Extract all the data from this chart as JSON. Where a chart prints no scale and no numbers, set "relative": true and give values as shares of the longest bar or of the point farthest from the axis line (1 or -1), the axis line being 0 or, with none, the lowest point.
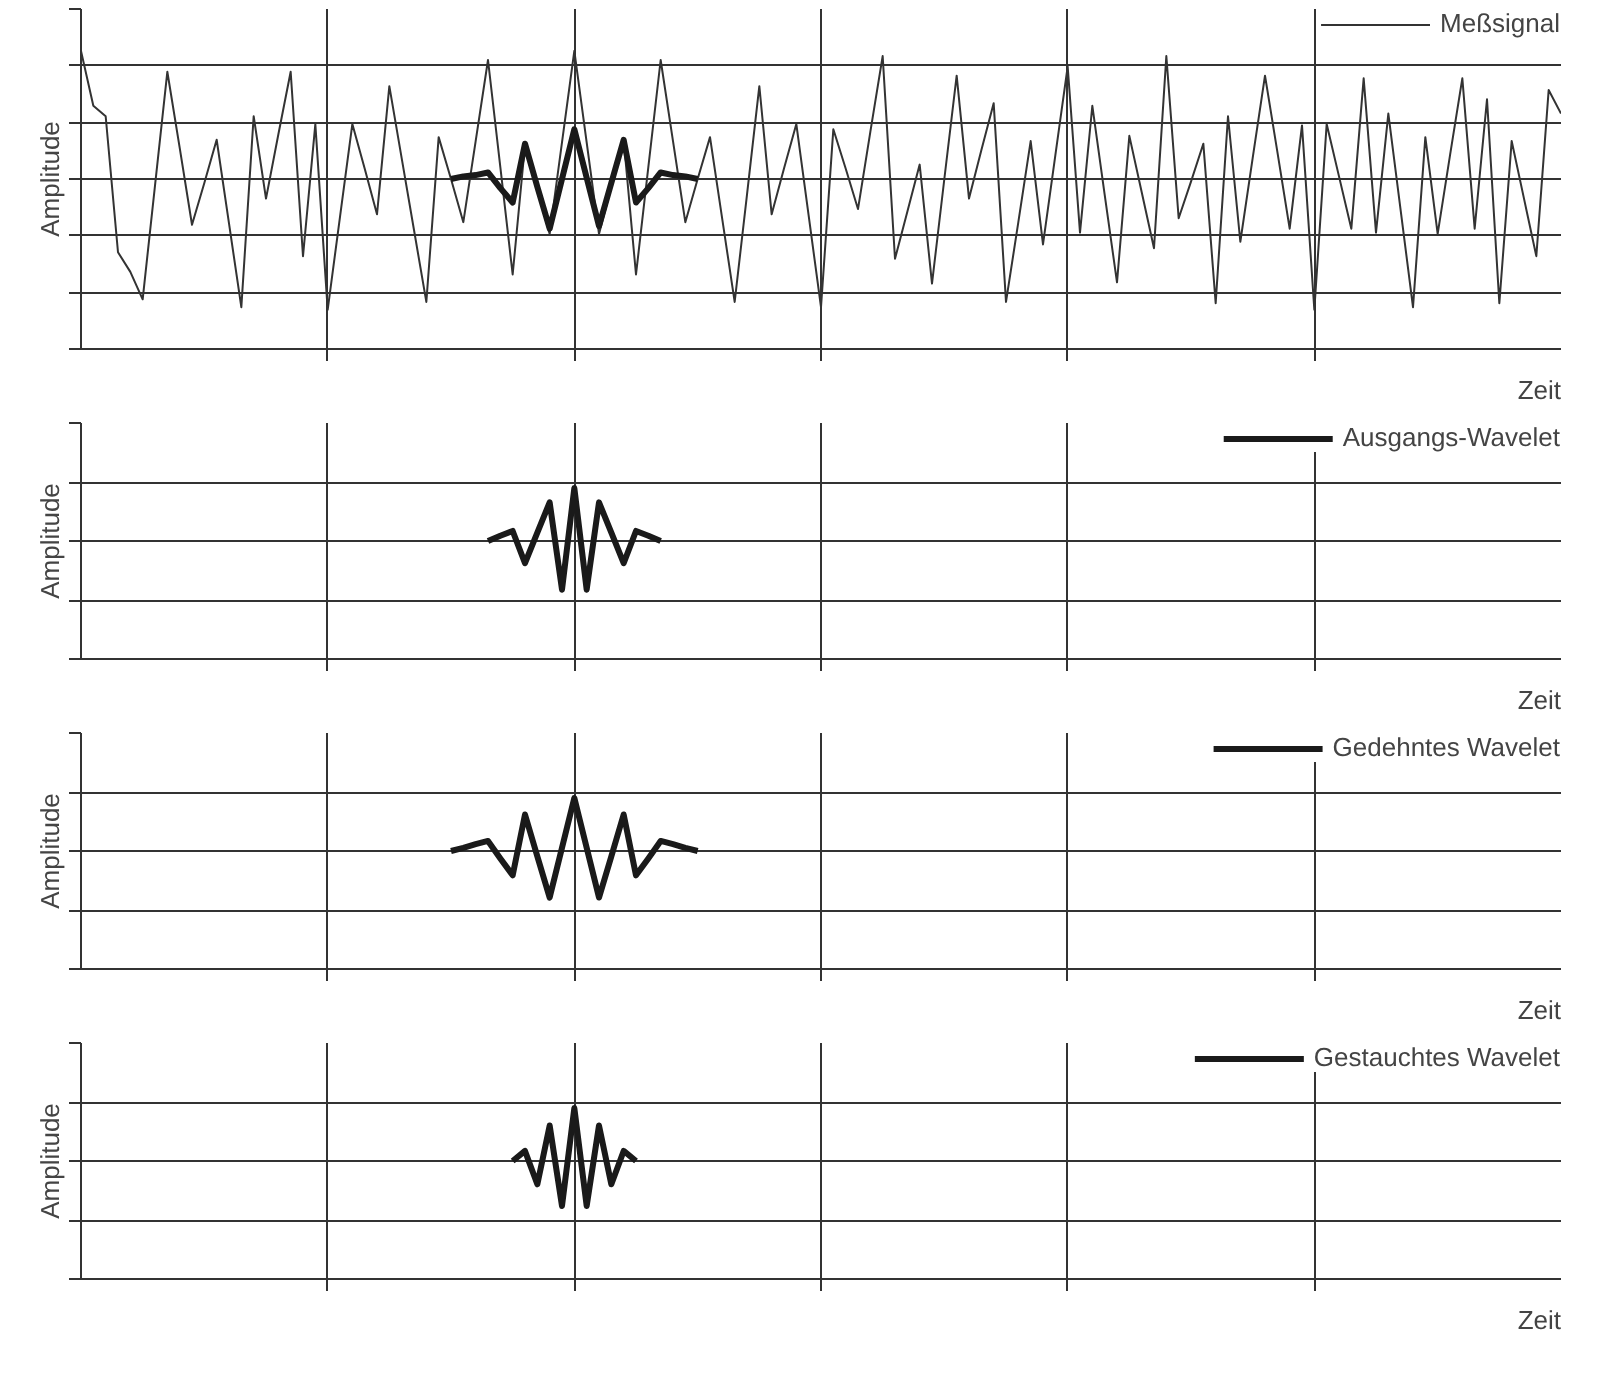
{
  "chart_data": [
    {
      "type": "line",
      "relative": true,
      "ylabel": "Amplitude",
      "xlabel": "Zeit",
      "grid": true,
      "legend": "top right",
      "categories": [
        null,
        null,
        null,
        null,
        null,
        null,
        null,
        null,
        null,
        null,
        null,
        null,
        null,
        null,
        null,
        null,
        null,
        null,
        null,
        null,
        null,
        null,
        null,
        null,
        null,
        null,
        null,
        null,
        null,
        null,
        null,
        null,
        null,
        null,
        null,
        null,
        null,
        null,
        null,
        null,
        null,
        null,
        null,
        null,
        null,
        null,
        null,
        null,
        null,
        null,
        null,
        null,
        null,
        null,
        null,
        null,
        null,
        null,
        null,
        null,
        null,
        null,
        null,
        null,
        null,
        null,
        null,
        null,
        null,
        null,
        null,
        null,
        null,
        null,
        null,
        null,
        null,
        null,
        null,
        null,
        null,
        null,
        null,
        null,
        null,
        null,
        null,
        null,
        null,
        null,
        null,
        null,
        null,
        null,
        null,
        null,
        null,
        null,
        null,
        null,
        null,
        null,
        null,
        null,
        null,
        null,
        null,
        null,
        null,
        null,
        null,
        null,
        null,
        null,
        null,
        null,
        null,
        null,
        null,
        null,
        null
      ],
      "series": [
        {
          "name": "Meßsignal",
          "color": "#333333",
          "values": [
            0.98,
            0.56,
            0.48,
            -0.56,
            -0.71,
            -0.92,
            -0.05,
            0.82,
            0.24,
            -0.35,
            -0.03,
            0.3,
            -0.34,
            -0.98,
            0.48,
            -0.15,
            0.34,
            0.82,
            -0.59,
            0.42,
            -1,
            -0.29,
            0.42,
            0.08,
            -0.27,
            0.71,
            0.16,
            -0.39,
            -0.94,
            0.32,
            0.0,
            -0.33,
            0.29,
            0.91,
            0.09,
            -0.73,
            0.26,
            -0.08,
            -0.42,
            0.28,
            0.98,
            0.28,
            -0.42,
            -0.06,
            0.3,
            -0.73,
            0.09,
            0.91,
            0.29,
            -0.33,
            0.0,
            0.32,
            -0.31,
            -0.94,
            -0.12,
            0.71,
            -0.27,
            0.08,
            0.42,
            -0.28,
            -0.98,
            0.38,
            0.08,
            -0.23,
            0.36,
            0.94,
            -0.61,
            -0.25,
            0.11,
            -0.8,
            0.0,
            0.79,
            -0.15,
            0.22,
            0.58,
            -0.94,
            -0.33,
            0.29,
            -0.5,
            0.18,
            0.86,
            -0.41,
            0.56,
            -0.12,
            -0.79,
            0.33,
            -0.1,
            -0.53,
            0.94,
            -0.3,
            -0.02,
            0.27,
            -0.95,
            0.48,
            -0.48,
            0.16,
            0.79,
            0.21,
            -0.38,
            0.41,
            -1,
            0.42,
            0.02,
            -0.38,
            0.77,
            -0.41,
            0.5,
            -0.24,
            -0.98,
            0.32,
            -0.42,
            0.18,
            0.77,
            -0.38,
            0.61,
            -0.95,
            0.29,
            -0.15,
            -0.59,
            0.68,
            0.5
          ]
        },
        {
          "color": "#1a1a1a",
          "values": [
            null,
            null,
            null,
            null,
            null,
            null,
            null,
            null,
            null,
            null,
            null,
            null,
            null,
            null,
            null,
            null,
            null,
            null,
            null,
            null,
            null,
            null,
            null,
            null,
            null,
            null,
            null,
            null,
            null,
            null,
            0,
            0.02,
            0.03,
            0.05,
            -0.07,
            -0.18,
            0.27,
            -0.06,
            -0.38,
            0.0,
            0.38,
            0.01,
            -0.36,
            -0.03,
            0.3,
            -0.18,
            -0.07,
            0.05,
            0.03,
            0.02,
            0,
            null,
            null,
            null,
            null,
            null,
            null,
            null,
            null,
            null,
            null,
            null,
            null,
            null,
            null,
            null,
            null,
            null,
            null,
            null,
            null,
            null,
            null,
            null,
            null,
            null,
            null,
            null,
            null,
            null,
            null,
            null,
            null,
            null,
            null,
            null,
            null,
            null,
            null,
            null,
            null,
            null,
            null,
            null,
            null,
            null,
            null,
            null,
            null,
            null,
            null,
            null,
            null,
            null,
            null,
            null,
            null,
            null,
            null,
            null,
            null,
            null,
            null,
            null,
            null,
            null,
            null,
            null,
            null,
            null,
            null
          ]
        }
      ]
    },
    {
      "type": "line",
      "relative": true,
      "ylabel": "Amplitude",
      "xlabel": "Zeit",
      "grid": true,
      "legend": "top right",
      "categories": [
        null,
        null,
        null,
        null,
        null,
        null,
        null,
        null,
        null,
        null,
        null,
        null,
        null,
        null,
        null,
        null,
        null,
        null,
        null,
        null,
        null,
        null,
        null,
        null,
        null,
        null,
        null,
        null,
        null,
        null,
        null,
        null,
        null,
        null,
        null,
        null,
        null,
        null,
        null,
        null,
        null,
        null,
        null,
        null,
        null,
        null,
        null,
        null,
        null,
        null,
        null,
        null,
        null,
        null,
        null,
        null,
        null,
        null,
        null,
        null,
        null,
        null,
        null,
        null,
        null,
        null,
        null,
        null,
        null,
        null,
        null,
        null,
        null,
        null,
        null,
        null,
        null,
        null,
        null,
        null,
        null,
        null,
        null,
        null,
        null,
        null,
        null,
        null,
        null,
        null,
        null,
        null,
        null,
        null,
        null,
        null,
        null,
        null,
        null,
        null,
        null,
        null,
        null,
        null,
        null,
        null,
        null,
        null,
        null,
        null,
        null,
        null,
        null,
        null,
        null,
        null,
        null,
        null,
        null,
        null,
        null
      ],
      "series": [
        {
          "name": "Ausgangs-Wavelet",
          "color": "#1a1a1a",
          "values": [
            null,
            null,
            null,
            null,
            null,
            null,
            null,
            null,
            null,
            null,
            null,
            null,
            null,
            null,
            null,
            null,
            null,
            null,
            null,
            null,
            null,
            null,
            null,
            null,
            null,
            null,
            null,
            null,
            null,
            null,
            null,
            null,
            null,
            0,
            0.1,
            0.19,
            -0.42,
            0.16,
            0.73,
            -0.92,
            1,
            -0.92,
            0.73,
            0.16,
            -0.42,
            0.19,
            0.1,
            0,
            null,
            null,
            null,
            null,
            null,
            null,
            null,
            null,
            null,
            null,
            null,
            null,
            null,
            null,
            null,
            null,
            null,
            null,
            null,
            null,
            null,
            null,
            null,
            null,
            null,
            null,
            null,
            null,
            null,
            null,
            null,
            null,
            null,
            null,
            null,
            null,
            null,
            null,
            null,
            null,
            null,
            null,
            null,
            null,
            null,
            null,
            null,
            null,
            null,
            null,
            null,
            null,
            null,
            null,
            null,
            null,
            null,
            null,
            null,
            null,
            null,
            null,
            null,
            null,
            null,
            null,
            null,
            null,
            null,
            null,
            null,
            null,
            null
          ]
        }
      ]
    },
    {
      "type": "line",
      "relative": true,
      "ylabel": "Amplitude",
      "xlabel": "Zeit",
      "grid": true,
      "legend": "top right",
      "categories": [
        null,
        null,
        null,
        null,
        null,
        null,
        null,
        null,
        null,
        null,
        null,
        null,
        null,
        null,
        null,
        null,
        null,
        null,
        null,
        null,
        null,
        null,
        null,
        null,
        null,
        null,
        null,
        null,
        null,
        null,
        null,
        null,
        null,
        null,
        null,
        null,
        null,
        null,
        null,
        null,
        null,
        null,
        null,
        null,
        null,
        null,
        null,
        null,
        null,
        null,
        null,
        null,
        null,
        null,
        null,
        null,
        null,
        null,
        null,
        null,
        null,
        null,
        null,
        null,
        null,
        null,
        null,
        null,
        null,
        null,
        null,
        null,
        null,
        null,
        null,
        null,
        null,
        null,
        null,
        null,
        null,
        null,
        null,
        null,
        null,
        null,
        null,
        null,
        null,
        null,
        null,
        null,
        null,
        null,
        null,
        null,
        null,
        null,
        null,
        null,
        null,
        null,
        null,
        null,
        null,
        null,
        null,
        null,
        null,
        null,
        null,
        null,
        null,
        null,
        null,
        null,
        null,
        null,
        null,
        null,
        null
      ],
      "series": [
        {
          "name": "Gedehntes Wavelet",
          "color": "#1a1a1a",
          "values": [
            null,
            null,
            null,
            null,
            null,
            null,
            null,
            null,
            null,
            null,
            null,
            null,
            null,
            null,
            null,
            null,
            null,
            null,
            null,
            null,
            null,
            null,
            null,
            null,
            null,
            null,
            null,
            null,
            null,
            null,
            0,
            0.06,
            0.13,
            0.19,
            -0.14,
            -0.46,
            0.69,
            -0.1,
            -0.88,
            0.06,
            1,
            0.06,
            -0.88,
            -0.1,
            0.69,
            -0.46,
            -0.14,
            0.19,
            0.13,
            0.06,
            0,
            null,
            null,
            null,
            null,
            null,
            null,
            null,
            null,
            null,
            null,
            null,
            null,
            null,
            null,
            null,
            null,
            null,
            null,
            null,
            null,
            null,
            null,
            null,
            null,
            null,
            null,
            null,
            null,
            null,
            null,
            null,
            null,
            null,
            null,
            null,
            null,
            null,
            null,
            null,
            null,
            null,
            null,
            null,
            null,
            null,
            null,
            null,
            null,
            null,
            null,
            null,
            null,
            null,
            null,
            null,
            null,
            null,
            null,
            null,
            null,
            null,
            null,
            null,
            null,
            null,
            null,
            null,
            null,
            null,
            null
          ]
        }
      ]
    },
    {
      "type": "line",
      "relative": true,
      "ylabel": "Amplitude",
      "xlabel": "Zeit",
      "grid": true,
      "legend": "top right",
      "categories": [
        null,
        null,
        null,
        null,
        null,
        null,
        null,
        null,
        null,
        null,
        null,
        null,
        null,
        null,
        null,
        null,
        null,
        null,
        null,
        null,
        null,
        null,
        null,
        null,
        null,
        null,
        null,
        null,
        null,
        null,
        null,
        null,
        null,
        null,
        null,
        null,
        null,
        null,
        null,
        null,
        null,
        null,
        null,
        null,
        null,
        null,
        null,
        null,
        null,
        null,
        null,
        null,
        null,
        null,
        null,
        null,
        null,
        null,
        null,
        null,
        null,
        null,
        null,
        null,
        null,
        null,
        null,
        null,
        null,
        null,
        null,
        null,
        null,
        null,
        null,
        null,
        null,
        null,
        null,
        null,
        null,
        null,
        null,
        null,
        null,
        null,
        null,
        null,
        null,
        null,
        null,
        null,
        null,
        null,
        null,
        null,
        null,
        null,
        null,
        null,
        null,
        null,
        null,
        null,
        null,
        null,
        null,
        null,
        null,
        null,
        null,
        null,
        null,
        null,
        null,
        null,
        null,
        null,
        null,
        null,
        null
      ],
      "series": [
        {
          "name": "Gestauchtes Wavelet",
          "color": "#1a1a1a",
          "values": [
            null,
            null,
            null,
            null,
            null,
            null,
            null,
            null,
            null,
            null,
            null,
            null,
            null,
            null,
            null,
            null,
            null,
            null,
            null,
            null,
            null,
            null,
            null,
            null,
            null,
            null,
            null,
            null,
            null,
            null,
            null,
            null,
            null,
            null,
            null,
            0,
            0.19,
            -0.44,
            0.67,
            -0.85,
            1,
            -0.85,
            0.67,
            -0.44,
            0.19,
            0,
            null,
            null,
            null,
            null,
            null,
            null,
            null,
            null,
            null,
            null,
            null,
            null,
            null,
            null,
            null,
            null,
            null,
            null,
            null,
            null,
            null,
            null,
            null,
            null,
            null,
            null,
            null,
            null,
            null,
            null,
            null,
            null,
            null,
            null,
            null,
            null,
            null,
            null,
            null,
            null,
            null,
            null,
            null,
            null,
            null,
            null,
            null,
            null,
            null,
            null,
            null,
            null,
            null,
            null,
            null,
            null,
            null,
            null,
            null,
            null,
            null,
            null,
            null,
            null,
            null,
            null,
            null,
            null,
            null,
            null,
            null,
            null,
            null,
            null,
            null
          ]
        }
      ]
    }
  ]
}
